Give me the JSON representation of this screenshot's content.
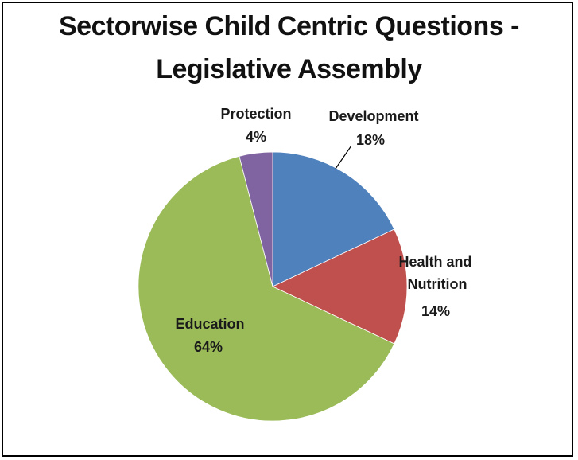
{
  "chart_data": {
    "type": "pie",
    "title_line1": "Sectorwise Child Centric Questions -",
    "title_line2": "Legislative Assembly",
    "slices": [
      {
        "name": "Development",
        "label_lines": [
          "Development"
        ],
        "percent_label": "18%",
        "value": 18,
        "color": "#4f81bd"
      },
      {
        "name": "Health and Nutrition",
        "label_lines": [
          "Health and",
          "Nutrition"
        ],
        "percent_label": "14%",
        "value": 14,
        "color": "#c0504d"
      },
      {
        "name": "Education",
        "label_lines": [
          "Education"
        ],
        "percent_label": "64%",
        "value": 64,
        "color": "#9bbb59"
      },
      {
        "name": "Protection",
        "label_lines": [
          "Protection"
        ],
        "percent_label": "4%",
        "value": 4,
        "color": "#8064a2"
      }
    ]
  }
}
